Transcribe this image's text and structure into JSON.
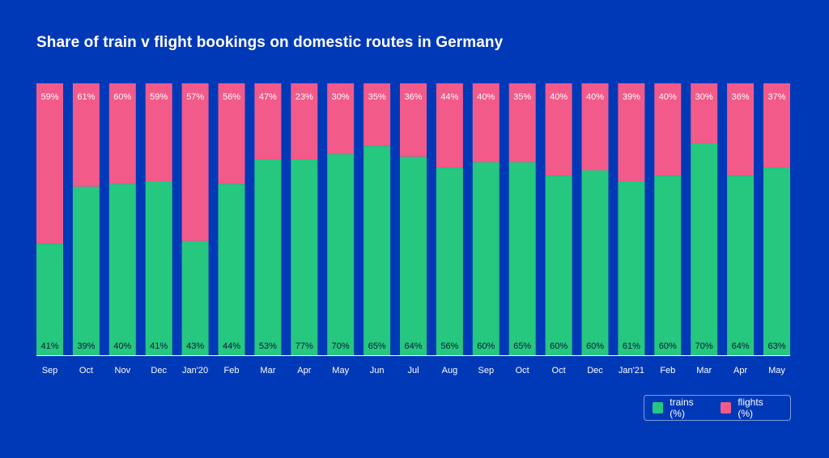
{
  "chart_data": {
    "type": "bar",
    "stacked": true,
    "title": "Share of train v flight bookings on domestic routes in Germany",
    "categories": [
      "Sep",
      "Oct",
      "Nov",
      "Dec",
      "Jan'20",
      "Feb",
      "Mar",
      "Apr",
      "May",
      "Jun",
      "Jul",
      "Aug",
      "Sep",
      "Oct",
      "Oct",
      "Dec",
      "Jan'21",
      "Feb",
      "Mar",
      "Apr",
      "May"
    ],
    "series": [
      {
        "name": "trains (%)",
        "color": "#26c77e",
        "values": [
          41,
          39,
          40,
          41,
          43,
          44,
          53,
          77,
          70,
          65,
          64,
          56,
          60,
          65,
          60,
          60,
          61,
          60,
          70,
          64,
          63
        ]
      },
      {
        "name": "flights (%)",
        "color": "#f25a8a",
        "values": [
          59,
          61,
          60,
          59,
          57,
          56,
          47,
          23,
          30,
          35,
          36,
          44,
          40,
          35,
          40,
          40,
          39,
          40,
          30,
          36,
          37
        ]
      }
    ],
    "train_bar_share": [
      0.41,
      0.62,
      0.63,
      0.64,
      0.42,
      0.63,
      0.72,
      0.72,
      0.74,
      0.77,
      0.73,
      0.69,
      0.71,
      0.71,
      0.66,
      0.68,
      0.64,
      0.66,
      0.78,
      0.66,
      0.69
    ],
    "ylim": [
      0,
      100
    ],
    "legend": "bottom-right"
  }
}
